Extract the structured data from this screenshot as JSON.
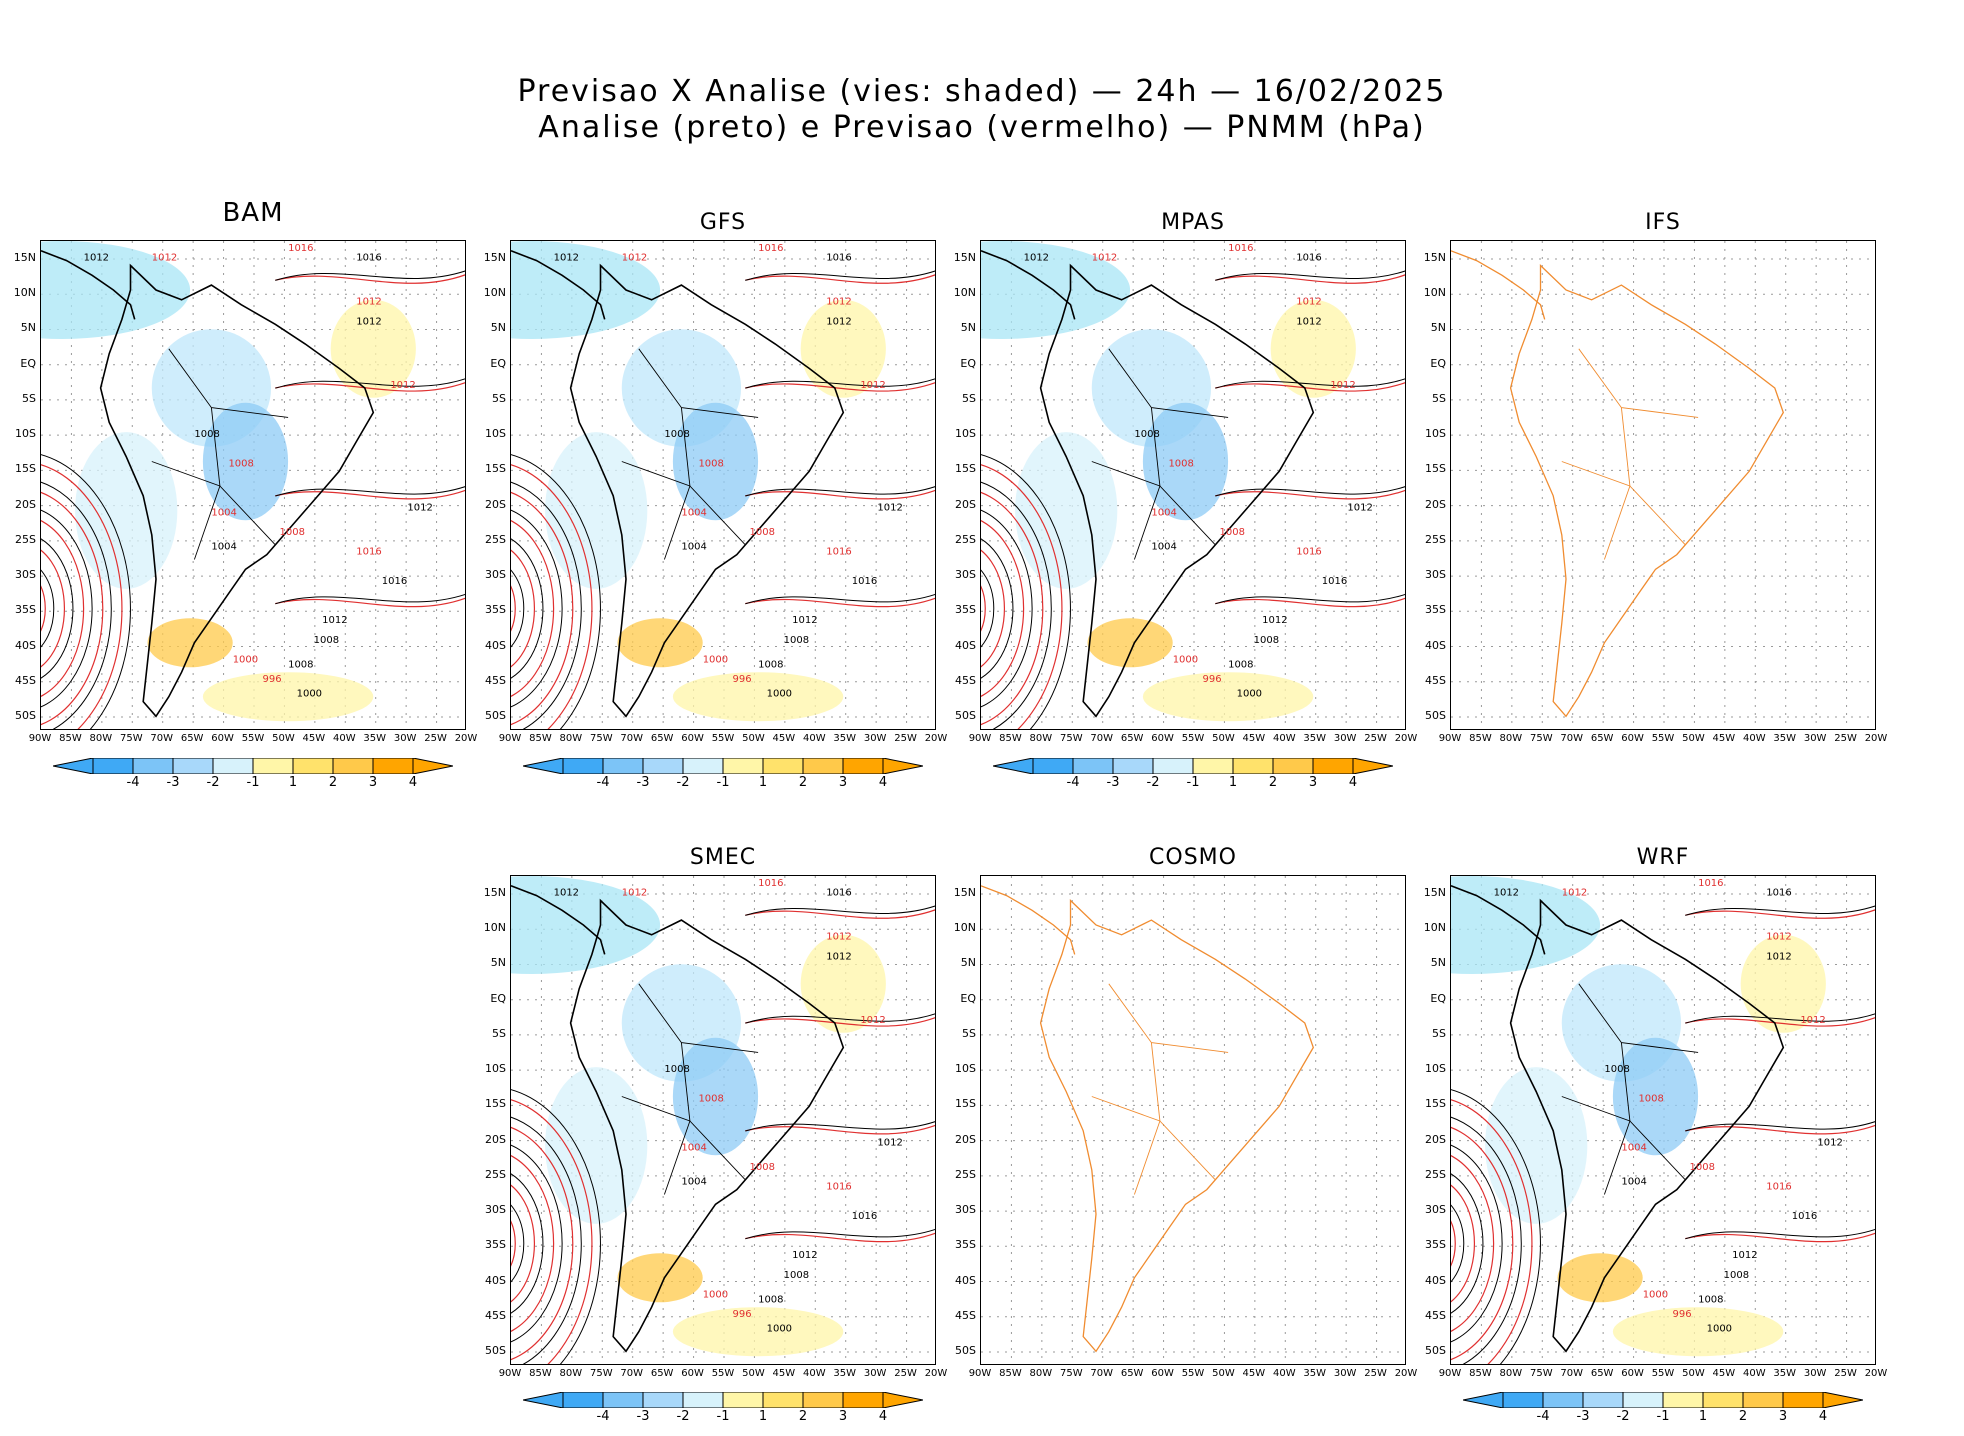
{
  "title": {
    "line1": "Previsao X Analise (vies: shaded) — 24h — 16/02/2025",
    "line2": "Analise (preto) e Previsao (vermelho) — PNMM (hPa)"
  },
  "panels": [
    {
      "id": "bam",
      "name": "BAM",
      "has_data": true,
      "has_colorbar": true
    },
    {
      "id": "gfs",
      "name": "GFS",
      "has_data": true,
      "has_colorbar": true
    },
    {
      "id": "mpas",
      "name": "MPAS",
      "has_data": true,
      "has_colorbar": true
    },
    {
      "id": "ifs",
      "name": "IFS",
      "has_data": false,
      "has_colorbar": false
    },
    {
      "id": "smec",
      "name": "SMEC",
      "has_data": true,
      "has_colorbar": true
    },
    {
      "id": "cosmo",
      "name": "COSMO",
      "has_data": false,
      "has_colorbar": false
    },
    {
      "id": "wrf",
      "name": "WRF",
      "has_data": true,
      "has_colorbar": true
    }
  ],
  "axes": {
    "lat_labels": [
      "15N",
      "10N",
      "5N",
      "EQ",
      "5S",
      "10S",
      "15S",
      "20S",
      "25S",
      "30S",
      "35S",
      "40S",
      "45S",
      "50S"
    ],
    "lon_labels": [
      "90W",
      "85W",
      "80W",
      "75W",
      "70W",
      "65W",
      "60W",
      "55W",
      "50W",
      "45W",
      "40W",
      "35W",
      "30W",
      "25W",
      "20W"
    ]
  },
  "colorbar": {
    "labels": [
      "-4",
      "-3",
      "-2",
      "-1",
      "1",
      "2",
      "3",
      "4"
    ],
    "colors": [
      "#3fa9f5",
      "#7cc4f7",
      "#a8d8fa",
      "#d7f2fb",
      "#ffffff",
      "#fff6a8",
      "#ffe26b",
      "#ffc94a",
      "#ffa500"
    ]
  },
  "contour_labels": {
    "black": [
      "1012",
      "1016",
      "1012",
      "1008",
      "1012",
      "1008",
      "1004",
      "1012",
      "1016",
      "1000",
      "1008"
    ],
    "red": [
      "1016",
      "1012",
      "1012",
      "1008",
      "1004",
      "1000",
      "996",
      "1016",
      "1008",
      "1012"
    ]
  },
  "colors": {
    "analysis": "#000000",
    "forecast": "#e03030",
    "coast_only": "#f08c30",
    "grid": "#9a9a9a"
  }
}
